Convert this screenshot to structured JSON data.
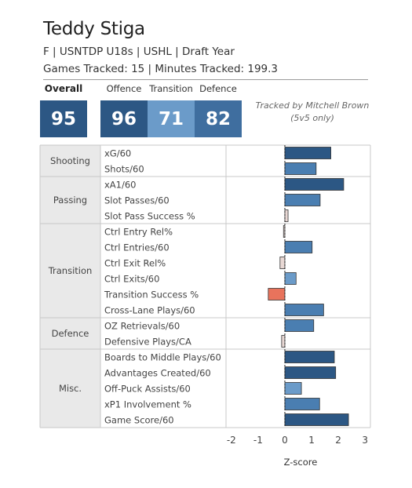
{
  "player": {
    "name": "Teddy Stiga",
    "line1": "F | USNTDP U18s | USHL | Draft Year",
    "line2": "Games Tracked: 15 | Minutes Tracked: 199.3"
  },
  "scores": {
    "overall_label": "Overall",
    "overall": "95",
    "offence_label": "Offence",
    "offence": "96",
    "transition_label": "Transition",
    "transition": "71",
    "defence_label": "Defence",
    "defence": "82"
  },
  "note": {
    "line1": "Tracked by Mitchell Brown",
    "line2": "(5v5 only)"
  },
  "colors": {
    "dark_blue": "#2c5784",
    "mid_blue": "#4a7eb1",
    "light_blue": "#6b9bc9",
    "pale": "#e8d8d4",
    "red": "#e8735c",
    "group_bg": "#e9e9e9"
  },
  "chart_data": {
    "type": "bar",
    "orientation": "horizontal",
    "xlabel": "Z-score",
    "xlim": [
      -2.2,
      3.2
    ],
    "xticks": [
      -2,
      -1,
      0,
      1,
      2,
      3
    ],
    "zero_line": "dashed",
    "groups": [
      {
        "name": "Shooting",
        "metrics": [
          {
            "label": "xG/60",
            "value": 1.72
          },
          {
            "label": "Shots/60",
            "value": 1.17
          }
        ]
      },
      {
        "name": "Passing",
        "metrics": [
          {
            "label": "xA1/60",
            "value": 2.2
          },
          {
            "label": "Slot Passes/60",
            "value": 1.32
          },
          {
            "label": "Slot Pass Success %",
            "value": 0.12
          }
        ]
      },
      {
        "name": "Transition",
        "metrics": [
          {
            "label": "Ctrl Entry Rel%",
            "value": -0.05
          },
          {
            "label": "Ctrl Entries/60",
            "value": 1.02
          },
          {
            "label": "Ctrl Exit Rel%",
            "value": -0.18
          },
          {
            "label": "Ctrl Exits/60",
            "value": 0.42
          },
          {
            "label": "Transition Success %",
            "value": -0.62
          },
          {
            "label": "Cross-Lane Plays/60",
            "value": 1.45
          }
        ]
      },
      {
        "name": "Defence",
        "metrics": [
          {
            "label": "OZ Retrievals/60",
            "value": 1.08
          },
          {
            "label": "Defensive Plays/CA",
            "value": -0.12
          }
        ]
      },
      {
        "name": "Misc.",
        "metrics": [
          {
            "label": "Boards to Middle Plays/60",
            "value": 1.85
          },
          {
            "label": "Advantages Created/60",
            "value": 1.9
          },
          {
            "label": "Off-Puck Assists/60",
            "value": 0.62
          },
          {
            "label": "xP1 Involvement %",
            "value": 1.3
          },
          {
            "label": "Game Score/60",
            "value": 2.38
          }
        ]
      }
    ]
  }
}
